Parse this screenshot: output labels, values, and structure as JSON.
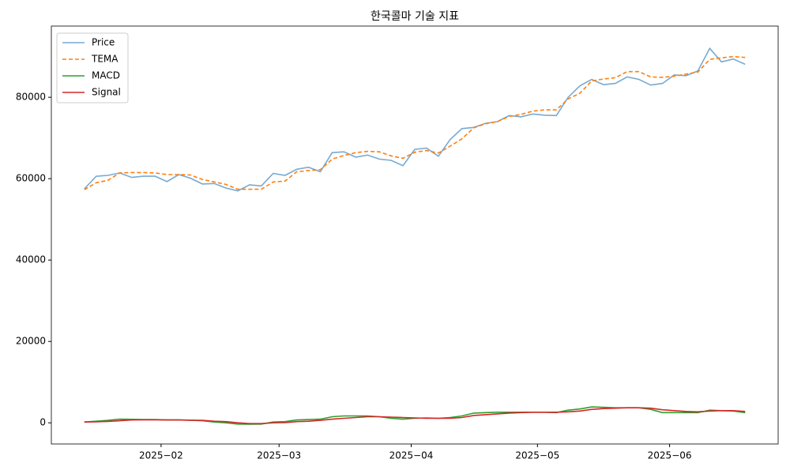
{
  "chart_data": {
    "type": "line",
    "title": "한국콜마 기술 지표",
    "x": [
      null,
      null,
      null,
      null,
      null,
      null,
      null,
      null,
      null,
      null,
      null,
      null,
      null,
      null,
      null,
      null,
      null,
      null,
      null,
      null,
      null,
      null,
      null,
      null,
      null,
      null,
      null,
      null,
      null,
      null,
      null,
      null,
      null,
      null,
      null,
      null,
      null,
      null,
      null,
      null,
      null,
      null,
      null,
      null,
      null,
      null,
      null,
      null,
      null,
      null,
      null,
      null,
      null,
      null,
      null,
      null,
      null
    ],
    "series": [
      {
        "name": "Price",
        "color": "#77aad3",
        "linestyle": "solid",
        "values": [
          57500,
          60600,
          60800,
          61400,
          60300,
          60600,
          60600,
          59300,
          61000,
          60100,
          58700,
          58800,
          57700,
          57000,
          58500,
          58200,
          61300,
          60800,
          62300,
          62800,
          61700,
          66400,
          66600,
          65300,
          65800,
          64800,
          64500,
          63200,
          67200,
          67500,
          65500,
          69600,
          72300,
          72600,
          73600,
          74000,
          75500,
          75200,
          75900,
          75600,
          75500,
          80000,
          82800,
          84400,
          83100,
          83400,
          85000,
          84400,
          83000,
          83400,
          85500,
          85300,
          86500,
          92000,
          88700,
          89400,
          88100
        ]
      },
      {
        "name": "TEMA",
        "color": "#ff7f0e",
        "linestyle": "dashed",
        "values": [
          57300,
          59000,
          59600,
          61400,
          61500,
          61500,
          61400,
          61000,
          61000,
          60900,
          59800,
          59200,
          58600,
          57400,
          57400,
          57400,
          59200,
          59400,
          61700,
          62000,
          62200,
          64800,
          65700,
          66400,
          66700,
          66600,
          65600,
          65000,
          66500,
          66900,
          66300,
          68000,
          69800,
          72500,
          73500,
          74000,
          75300,
          75800,
          76600,
          76900,
          76900,
          79600,
          81000,
          84000,
          84500,
          84800,
          86300,
          86300,
          85000,
          84900,
          85200,
          85700,
          86200,
          89300,
          89700,
          90000,
          89800
        ]
      },
      {
        "name": "MACD",
        "color": "#2ca02c",
        "linestyle": "solid",
        "values": [
          200,
          400,
          600,
          900,
          850,
          800,
          800,
          700,
          700,
          650,
          500,
          200,
          0,
          -300,
          -350,
          -300,
          200,
          300,
          700,
          800,
          900,
          1500,
          1700,
          1700,
          1700,
          1500,
          1100,
          900,
          1100,
          1200,
          1100,
          1300,
          1700,
          2400,
          2500,
          2600,
          2600,
          2600,
          2600,
          2600,
          2500,
          3100,
          3400,
          3900,
          3800,
          3700,
          3700,
          3700,
          3300,
          2500,
          2500,
          2500,
          2500,
          3100,
          3000,
          2900,
          2500
        ]
      },
      {
        "name": "Signal",
        "color": "#d62728",
        "linestyle": "solid",
        "values": [
          200,
          250,
          350,
          500,
          700,
          750,
          750,
          700,
          700,
          650,
          600,
          400,
          300,
          0,
          -200,
          -200,
          0,
          50,
          300,
          400,
          600,
          900,
          1100,
          1300,
          1500,
          1500,
          1400,
          1300,
          1200,
          1100,
          1100,
          1100,
          1300,
          1800,
          2000,
          2200,
          2400,
          2500,
          2600,
          2600,
          2600,
          2700,
          2900,
          3300,
          3500,
          3600,
          3700,
          3700,
          3600,
          3200,
          3000,
          2800,
          2700,
          2900,
          3000,
          3000,
          2800
        ]
      }
    ],
    "xlim": [
      -2.8,
      58.8
    ],
    "xticks": [
      {
        "value": 6.5,
        "label": "2025−02"
      },
      {
        "value": 16.5,
        "label": "2025−03"
      },
      {
        "value": 27.7,
        "label": "2025−04"
      },
      {
        "value": 38.4,
        "label": "2025−05"
      },
      {
        "value": 49.6,
        "label": "2025−06"
      }
    ],
    "ylim": [
      -5200,
      97500
    ],
    "yticks": [
      0,
      20000,
      40000,
      60000,
      80000
    ],
    "legend": "upper left",
    "grid": false
  }
}
